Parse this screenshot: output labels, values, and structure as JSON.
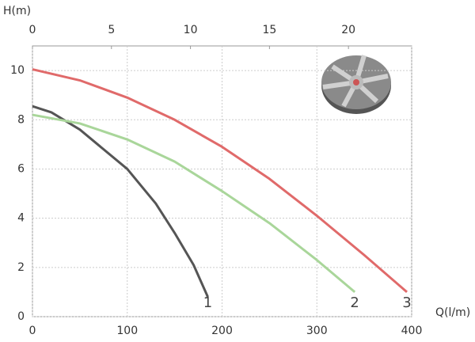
{
  "chart_data": {
    "type": "line",
    "x_label": "Q(l/m)",
    "y_label": "H(m)",
    "xlim": [
      0,
      400
    ],
    "xticks": [
      0,
      100,
      200,
      300,
      400
    ],
    "x2lim": [
      0,
      24
    ],
    "x2ticks": [
      0,
      5,
      10,
      15,
      20
    ],
    "ylim": [
      0,
      11
    ],
    "yticks": [
      0,
      2,
      4,
      6,
      8,
      10
    ],
    "grid": true,
    "series": [
      {
        "name": "1",
        "color": "#555555",
        "x": [
          0,
          20,
          50,
          100,
          130,
          150,
          170,
          185
        ],
        "values": [
          8.55,
          8.3,
          7.6,
          6.0,
          4.6,
          3.4,
          2.1,
          0.8
        ]
      },
      {
        "name": "2",
        "color": "#a9d69a",
        "x": [
          0,
          50,
          100,
          150,
          200,
          250,
          300,
          340
        ],
        "values": [
          8.2,
          7.85,
          7.2,
          6.3,
          5.1,
          3.8,
          2.3,
          1.0
        ]
      },
      {
        "name": "3",
        "color": "#e06a6a",
        "x": [
          0,
          50,
          100,
          150,
          200,
          250,
          300,
          350,
          395
        ],
        "values": [
          10.05,
          9.6,
          8.9,
          8.0,
          6.9,
          5.6,
          4.1,
          2.5,
          1.0
        ]
      }
    ]
  }
}
